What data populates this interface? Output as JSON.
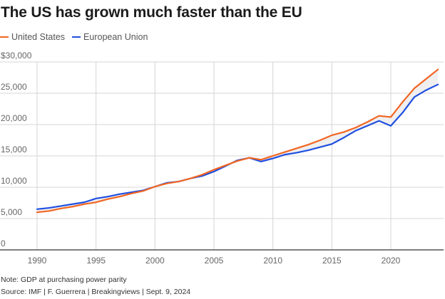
{
  "title": "The US has grown much faster than the EU",
  "legend": [
    {
      "label": "United States",
      "color": "#f26522"
    },
    {
      "label": "European Union",
      "color": "#1f4fe0"
    }
  ],
  "note": "Note: GDP at purchasing power parity",
  "source": "Source: IMF | F. Guerrera | Breakingviews | Sept. 9, 2024",
  "chart_data": {
    "type": "line",
    "title": "The US has grown much faster than the EU",
    "xlabel": "",
    "ylabel": "",
    "x": [
      1990,
      1991,
      1992,
      1993,
      1994,
      1995,
      1996,
      1997,
      1998,
      1999,
      2000,
      2001,
      2002,
      2003,
      2004,
      2005,
      2006,
      2007,
      2008,
      2009,
      2010,
      2011,
      2012,
      2013,
      2014,
      2015,
      2016,
      2017,
      2018,
      2019,
      2020,
      2021,
      2022,
      2023,
      2024
    ],
    "series": [
      {
        "name": "United States",
        "color": "#f26522",
        "values": [
          6000,
          6200,
          6600,
          6900,
          7300,
          7600,
          8100,
          8500,
          9000,
          9400,
          10100,
          10600,
          10900,
          11400,
          12000,
          12800,
          13500,
          14200,
          14700,
          14400,
          15000,
          15600,
          16200,
          16800,
          17500,
          18300,
          18800,
          19500,
          20400,
          21400,
          21200,
          23600,
          25800,
          27300,
          28800
        ]
      },
      {
        "name": "European Union",
        "color": "#1f4fe0",
        "values": [
          6500,
          6700,
          7000,
          7300,
          7600,
          8200,
          8500,
          8900,
          9200,
          9500,
          10100,
          10700,
          10900,
          11400,
          11800,
          12500,
          13400,
          14300,
          14700,
          14100,
          14600,
          15200,
          15500,
          15900,
          16400,
          16900,
          17900,
          19000,
          19800,
          20600,
          19800,
          21900,
          24400,
          25500,
          26400
        ]
      }
    ],
    "shaded_gap_between_series": true,
    "ylim": [
      0,
      30000
    ],
    "xlim": [
      1990,
      2024
    ],
    "yticks": [
      0,
      5000,
      10000,
      15000,
      20000,
      25000,
      30000
    ],
    "ytick_labels": [
      "0",
      "5,000",
      "10,000",
      "15,000",
      "20,000",
      "25,000",
      "$30,000"
    ],
    "xticks": [
      1990,
      1995,
      2000,
      2005,
      2010,
      2015,
      2020
    ],
    "xtick_labels": [
      "1990",
      "1995",
      "2000",
      "2005",
      "2010",
      "2015",
      "2020"
    ],
    "grid": true,
    "legend_position": "top-left"
  }
}
